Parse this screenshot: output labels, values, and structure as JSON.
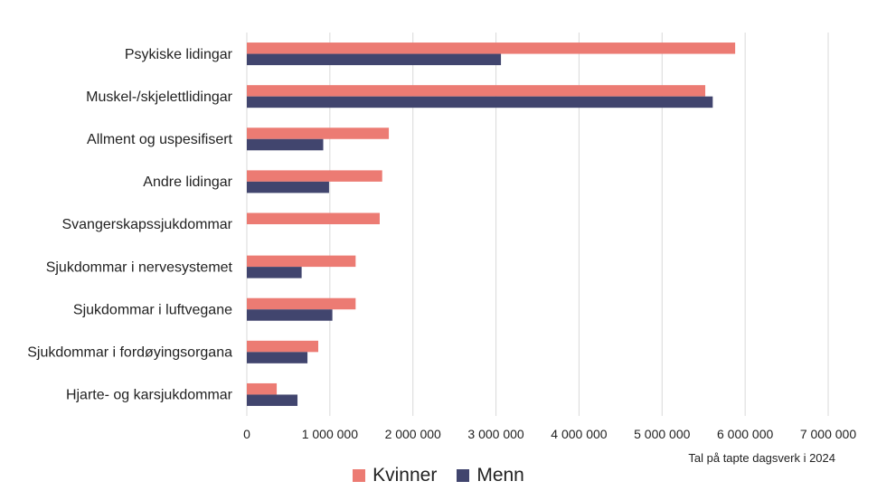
{
  "chart_data": {
    "type": "bar",
    "orientation": "horizontal",
    "categories": [
      "Psykiske lidingar",
      "Muskel-/skjelettlidingar",
      "Allment og uspesifisert",
      "Andre lidingar",
      "Svangerskapssjukdommar",
      "Sjukdommar i nervesystemet",
      "Sjukdommar i luftvegane",
      "Sjukdommar i fordøyingsorgana",
      "Hjarte- og karsjukdommar"
    ],
    "series": [
      {
        "name": "Kvinner",
        "color": "#EC7B73",
        "values": [
          5880000,
          5520000,
          1710000,
          1630000,
          1600000,
          1310000,
          1310000,
          860000,
          360000
        ]
      },
      {
        "name": "Menn",
        "color": "#41456E",
        "values": [
          3060000,
          5610000,
          920000,
          990000,
          0,
          660000,
          1030000,
          730000,
          610000
        ]
      }
    ],
    "xlim": [
      0,
      7000000
    ],
    "xticks": [
      "0",
      "1 000 000",
      "2 000 000",
      "3 000 000",
      "4 000 000",
      "5 000 000",
      "6 000 000",
      "7 000 000"
    ],
    "xlabel": "Tal på tapte dagsverk i 2024",
    "grid": true,
    "legend": "bottom"
  }
}
